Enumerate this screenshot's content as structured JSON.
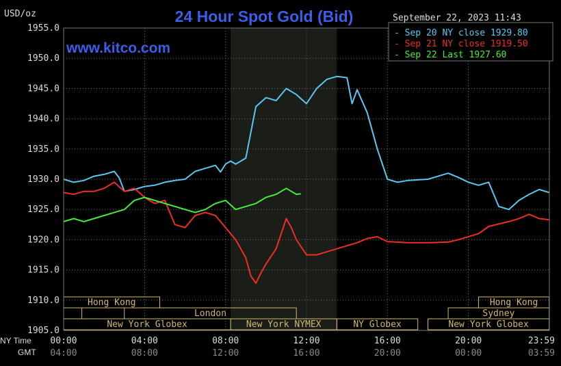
{
  "chart_data": {
    "type": "line",
    "title": "24 Hour Spot Gold (Bid)",
    "watermark": "www.kitco.com",
    "ylabel": "USD/oz",
    "timestamp": "September 22, 2023 11:43",
    "ylim": [
      1905,
      1955
    ],
    "y_ticks": [
      "1955.0",
      "1950.0",
      "1945.0",
      "1940.0",
      "1935.0",
      "1930.0",
      "1925.0",
      "1920.0",
      "1915.0",
      "1910.0",
      "1905.0"
    ],
    "xlim": [
      0,
      24
    ],
    "x_axis_label_ny": "NY Time",
    "x_axis_label_gmt": "GMT",
    "x_ticks_ny": [
      "00:00",
      "04:00",
      "08:00",
      "12:00",
      "16:00",
      "20:00",
      "23:59"
    ],
    "x_ticks_gmt": [
      "04:00",
      "08:00",
      "12:00",
      "16:00",
      "20:00",
      "00:00",
      "03:59"
    ],
    "highlight_range_hours": [
      8.25,
      13.5
    ],
    "legend": {
      "position": "top-right",
      "entries": [
        "Sep 20 NY close 1929.80",
        "Sep 21 NY close 1919.50",
        "Sep 22 Last 1927.60"
      ]
    },
    "colors": {
      "sep20": "#5bc8f2",
      "sep21": "#ee2e24",
      "sep22": "#44ee3c",
      "title": "#3b5ee8",
      "grid": "#777777",
      "session": "#d2b96e"
    },
    "series": [
      {
        "name": "Sep 20",
        "color": "#5bc8f2",
        "x": [
          0,
          0.5,
          1,
          1.5,
          2,
          2.5,
          2.75,
          3,
          3.5,
          4,
          4.5,
          5,
          5.5,
          6,
          6.5,
          7,
          7.5,
          7.75,
          8,
          8.25,
          8.5,
          8.75,
          9,
          9.5,
          10,
          10.5,
          11,
          11.5,
          12,
          12.5,
          13,
          13.5,
          14,
          14.25,
          14.5,
          15,
          15.5,
          16,
          16.5,
          17,
          18,
          18.5,
          19,
          19.5,
          20,
          20.5,
          21,
          21.5,
          22,
          22.5,
          23,
          23.5,
          23.99
        ],
        "y": [
          1930,
          1929.5,
          1929.8,
          1930.5,
          1930.8,
          1931.3,
          1930.2,
          1928,
          1928.3,
          1928.8,
          1929,
          1929.5,
          1929.8,
          1930,
          1931.3,
          1931.8,
          1932.3,
          1931.2,
          1932.5,
          1933,
          1932.5,
          1933,
          1933.5,
          1942,
          1943.5,
          1943,
          1945,
          1944,
          1942.5,
          1945,
          1946.5,
          1947,
          1946.8,
          1942.5,
          1944.8,
          1941,
          1935,
          1930,
          1929.5,
          1929.8,
          1930,
          1930.5,
          1931,
          1930.3,
          1929.5,
          1929,
          1929.5,
          1925.5,
          1925,
          1926.5,
          1927.5,
          1928.3,
          1927.8
        ]
      },
      {
        "name": "Sep 21",
        "color": "#ee2e24",
        "x": [
          0,
          0.5,
          1,
          1.5,
          2,
          2.5,
          3,
          3.5,
          4,
          4.5,
          5,
          5.5,
          6,
          6.5,
          7,
          7.5,
          8,
          8.5,
          9,
          9.25,
          9.5,
          9.75,
          10,
          10.5,
          11,
          11.25,
          11.5,
          12,
          12.5,
          13,
          13.5,
          14,
          14.5,
          15,
          15.5,
          16,
          17,
          18,
          19,
          19.5,
          20,
          20.5,
          21,
          21.5,
          22,
          22.5,
          23,
          23.5,
          23.99
        ],
        "y": [
          1927.8,
          1927.5,
          1928,
          1928,
          1928.5,
          1929.5,
          1928,
          1928.5,
          1927,
          1926,
          1926.5,
          1922.5,
          1922,
          1924,
          1924.5,
          1924,
          1922,
          1920,
          1917,
          1914,
          1912.8,
          1914.5,
          1916,
          1918.5,
          1923.5,
          1922,
          1920,
          1917.5,
          1917.5,
          1918,
          1918.5,
          1919,
          1919.5,
          1920.2,
          1920.5,
          1919.7,
          1919.5,
          1919.5,
          1919.6,
          1920,
          1920.5,
          1921,
          1922.2,
          1922.6,
          1923,
          1923.5,
          1924.2,
          1923.5,
          1923.3
        ]
      },
      {
        "name": "Sep 22",
        "color": "#44ee3c",
        "x": [
          0,
          0.5,
          1,
          1.5,
          2,
          2.5,
          3,
          3.5,
          4,
          4.5,
          5,
          5.5,
          6,
          6.5,
          7,
          7.5,
          8,
          8.5,
          9,
          9.5,
          10,
          10.5,
          11,
          11.25,
          11.5,
          11.72
        ],
        "y": [
          1923,
          1923.5,
          1923,
          1923.5,
          1924,
          1924.5,
          1925,
          1926.5,
          1927,
          1926.5,
          1926,
          1925.5,
          1925,
          1924.5,
          1925,
          1926,
          1926.5,
          1925,
          1925.5,
          1926,
          1927,
          1927.5,
          1928.5,
          1928,
          1927.5,
          1927.6
        ]
      }
    ],
    "sessions": [
      {
        "name": "Hong Kong",
        "start": 0,
        "end": 4.75,
        "row": 1,
        "label": true
      },
      {
        "name": "Hong Kong",
        "start": 20.5,
        "end": 23.99,
        "row": 1,
        "label": true
      },
      {
        "name": "Sydney",
        "start": 0,
        "end": 0.9,
        "row": 2,
        "label": false
      },
      {
        "name": "London",
        "start": 3,
        "end": 11.5,
        "row": 2,
        "label": true
      },
      {
        "name": "Sydney",
        "start": 19,
        "end": 23.99,
        "row": 2,
        "label": true
      },
      {
        "name": "New York Globex",
        "start": 0,
        "end": 8.25,
        "row": 3,
        "label": true
      },
      {
        "name": "New York NYMEX",
        "start": 8.25,
        "end": 13.5,
        "row": 3,
        "label": true
      },
      {
        "name": "NY Globex",
        "start": 13.5,
        "end": 17.5,
        "row": 3,
        "label": true
      },
      {
        "name": "New York Globex",
        "start": 18,
        "end": 23.99,
        "row": 3,
        "label": true
      }
    ]
  }
}
